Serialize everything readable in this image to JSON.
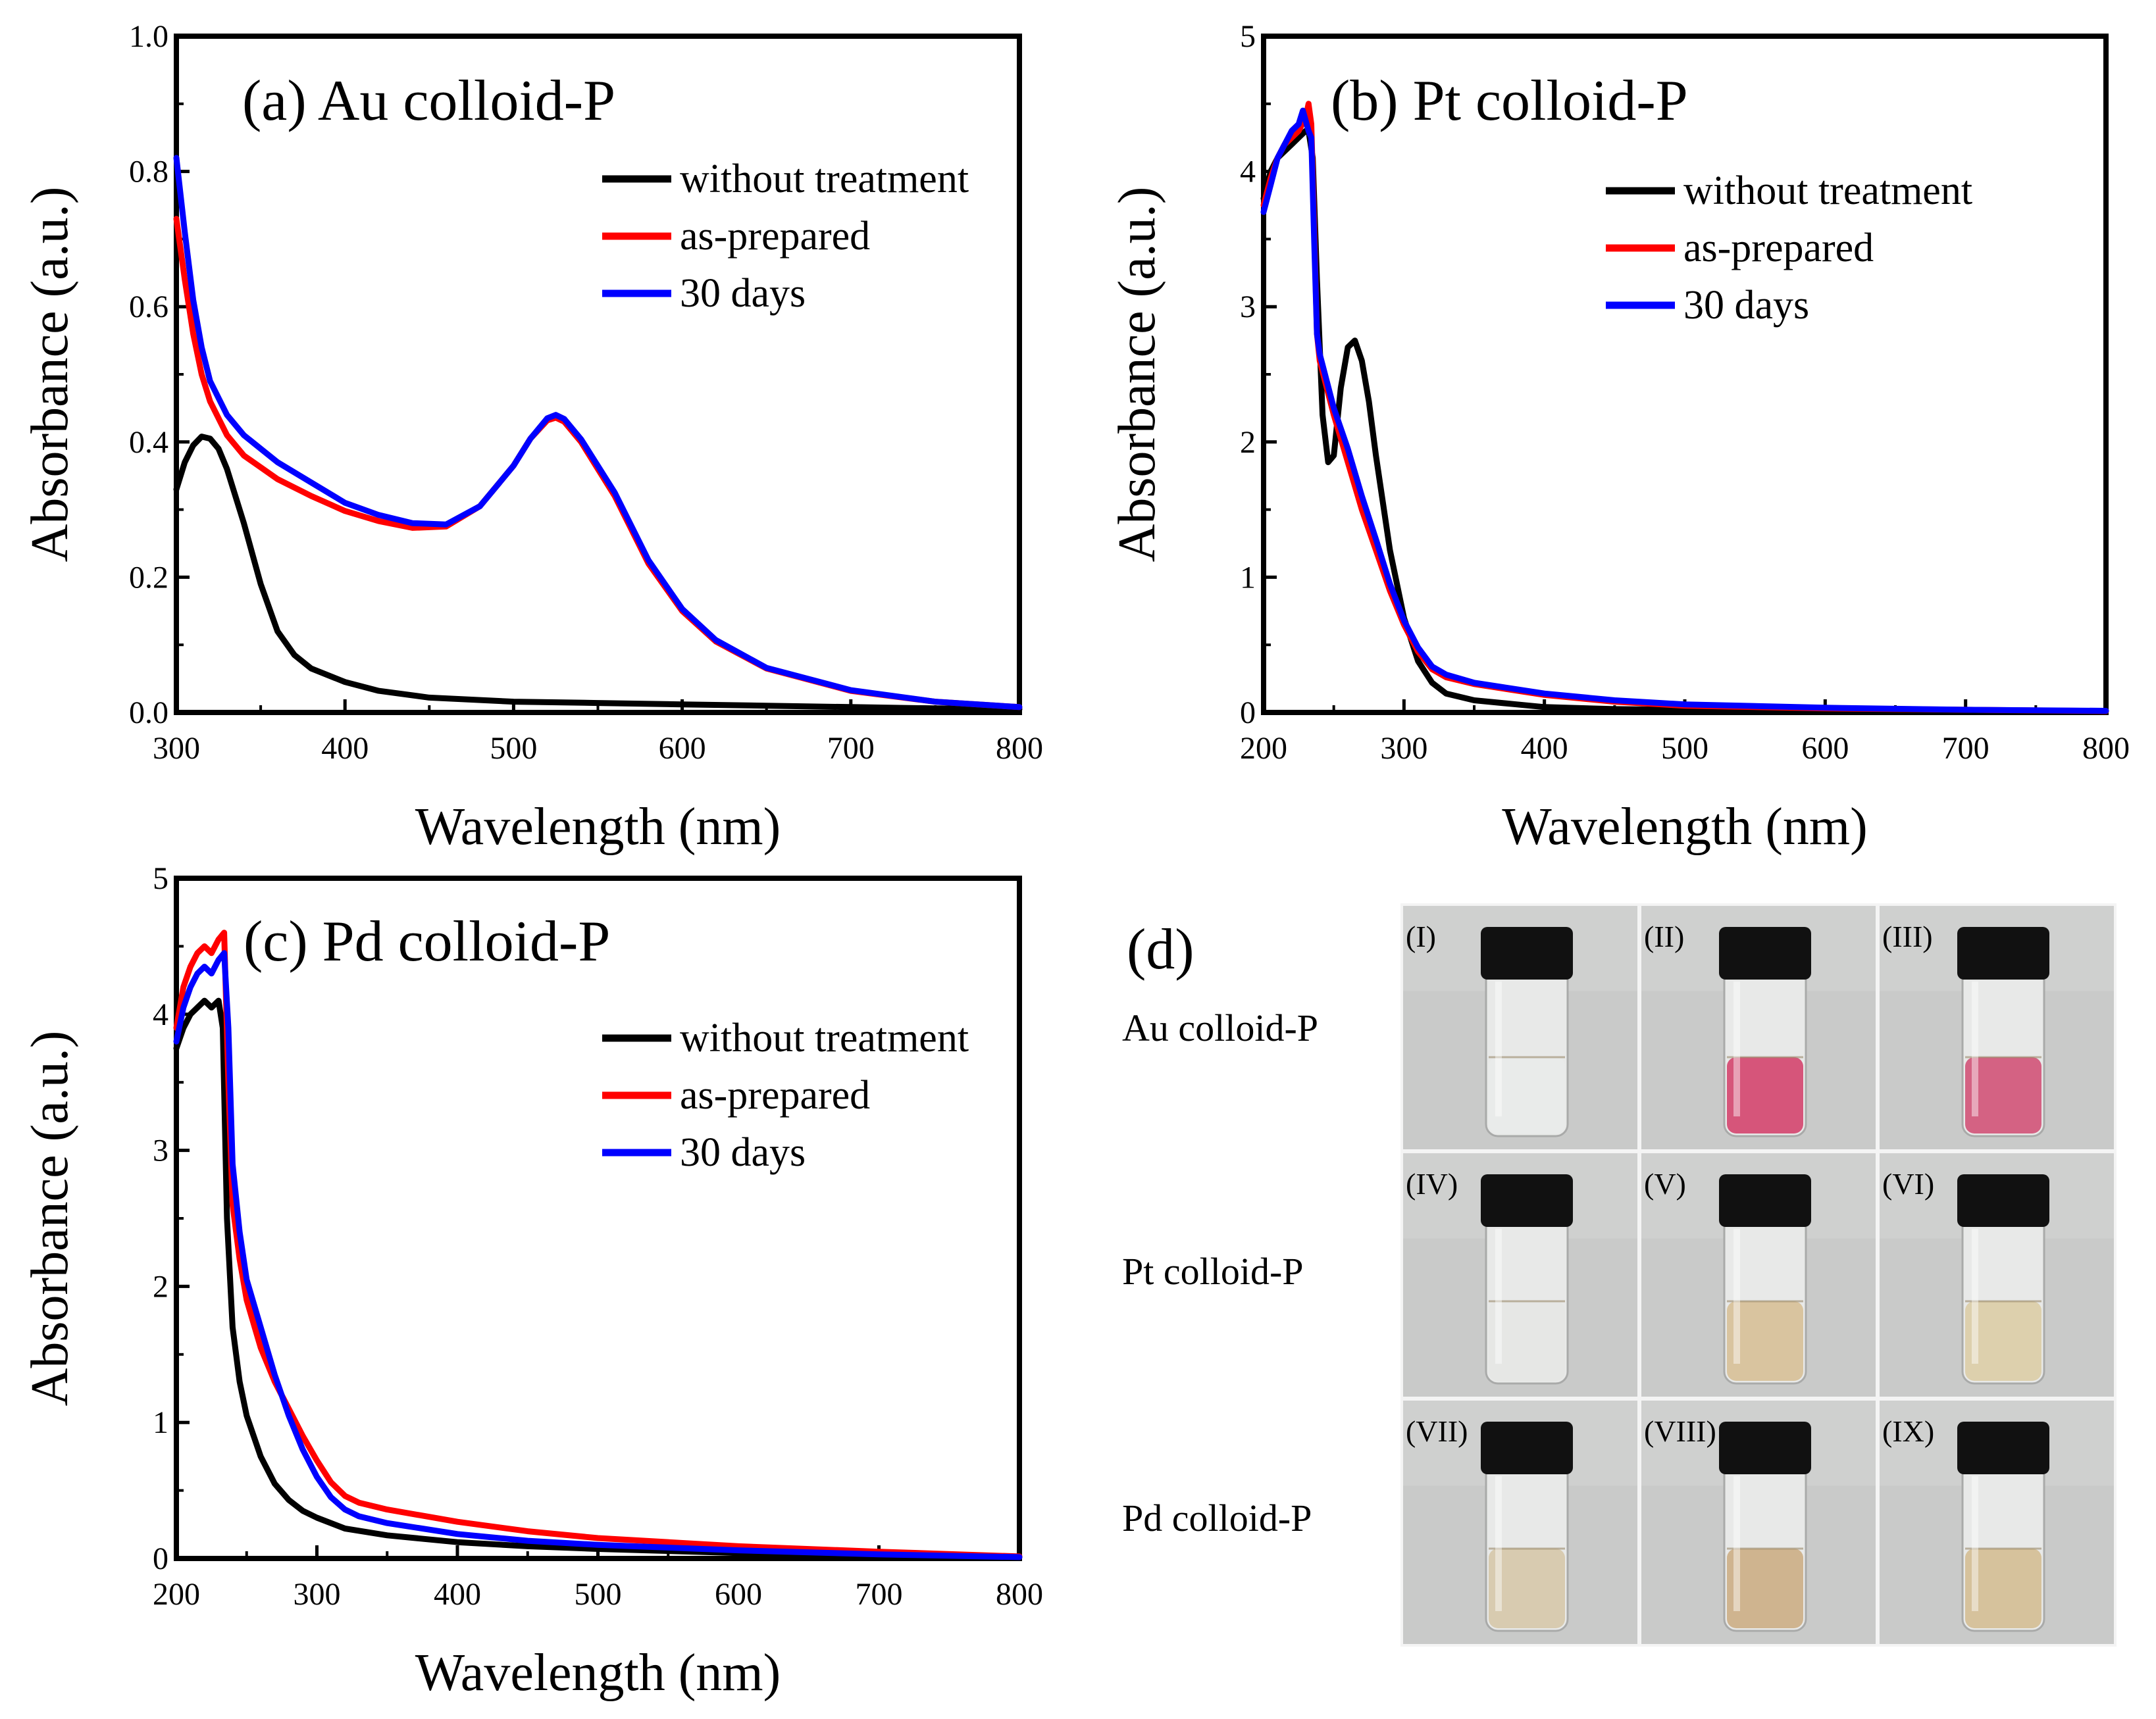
{
  "figure": {
    "panel_d_label": "(d)",
    "row_labels": [
      "Au colloid-P",
      "Pt colloid-P",
      "Pd colloid-P"
    ],
    "vial_labels": [
      "(I)",
      "(II)",
      "(III)",
      "(IV)",
      "(V)",
      "(VI)",
      "(VII)",
      "(VIII)",
      "(IX)"
    ],
    "vial_liquid_colors": [
      "#e9ebea",
      "#d6557a",
      "#d46283",
      "#e6e7e5",
      "#d9c49f",
      "#ddd0ad",
      "#d8cbb0",
      "#cfb48f",
      "#d6c29c"
    ],
    "vial_background": "#c9cac9",
    "cap_color": "#111111"
  },
  "chart_data": [
    {
      "type": "line",
      "title": "(a) Au colloid-P",
      "xlabel": "Wavelength (nm)",
      "ylabel": "Absorbance (a.u.)",
      "xlim": [
        300,
        800
      ],
      "ylim": [
        0,
        1.0
      ],
      "xticks": [
        "300",
        "400",
        "500",
        "600",
        "700",
        "800"
      ],
      "yticks": [
        "0.0",
        "0.2",
        "0.4",
        "0.6",
        "0.8",
        "1.0"
      ],
      "legend_position": "top-right",
      "series": [
        {
          "name": "without treatment",
          "color": "#000000",
          "points": [
            [
              300,
              0.33
            ],
            [
              305,
              0.37
            ],
            [
              310,
              0.395
            ],
            [
              315,
              0.408
            ],
            [
              320,
              0.405
            ],
            [
              325,
              0.39
            ],
            [
              330,
              0.36
            ],
            [
              340,
              0.28
            ],
            [
              350,
              0.19
            ],
            [
              360,
              0.12
            ],
            [
              370,
              0.085
            ],
            [
              380,
              0.065
            ],
            [
              400,
              0.045
            ],
            [
              420,
              0.032
            ],
            [
              450,
              0.022
            ],
            [
              500,
              0.016
            ],
            [
              550,
              0.014
            ],
            [
              600,
              0.012
            ],
            [
              650,
              0.01
            ],
            [
              700,
              0.008
            ],
            [
              750,
              0.006
            ],
            [
              800,
              0.005
            ]
          ]
        },
        {
          "name": "as-prepared",
          "color": "#ff0000",
          "points": [
            [
              300,
              0.73
            ],
            [
              305,
              0.64
            ],
            [
              310,
              0.56
            ],
            [
              315,
              0.5
            ],
            [
              320,
              0.46
            ],
            [
              330,
              0.41
            ],
            [
              340,
              0.38
            ],
            [
              360,
              0.345
            ],
            [
              380,
              0.32
            ],
            [
              400,
              0.298
            ],
            [
              420,
              0.283
            ],
            [
              440,
              0.273
            ],
            [
              460,
              0.275
            ],
            [
              480,
              0.305
            ],
            [
              500,
              0.365
            ],
            [
              510,
              0.405
            ],
            [
              520,
              0.432
            ],
            [
              525,
              0.436
            ],
            [
              530,
              0.43
            ],
            [
              540,
              0.4
            ],
            [
              560,
              0.32
            ],
            [
              580,
              0.22
            ],
            [
              600,
              0.15
            ],
            [
              620,
              0.105
            ],
            [
              650,
              0.065
            ],
            [
              700,
              0.032
            ],
            [
              750,
              0.016
            ],
            [
              800,
              0.008
            ]
          ]
        },
        {
          "name": "30 days",
          "color": "#0000ff",
          "points": [
            [
              300,
              0.82
            ],
            [
              305,
              0.71
            ],
            [
              310,
              0.61
            ],
            [
              315,
              0.54
            ],
            [
              320,
              0.49
            ],
            [
              330,
              0.44
            ],
            [
              340,
              0.41
            ],
            [
              360,
              0.37
            ],
            [
              380,
              0.34
            ],
            [
              400,
              0.31
            ],
            [
              420,
              0.292
            ],
            [
              440,
              0.28
            ],
            [
              460,
              0.278
            ],
            [
              480,
              0.305
            ],
            [
              500,
              0.365
            ],
            [
              510,
              0.405
            ],
            [
              520,
              0.435
            ],
            [
              525,
              0.44
            ],
            [
              530,
              0.434
            ],
            [
              540,
              0.404
            ],
            [
              560,
              0.325
            ],
            [
              580,
              0.225
            ],
            [
              600,
              0.153
            ],
            [
              620,
              0.107
            ],
            [
              650,
              0.066
            ],
            [
              700,
              0.033
            ],
            [
              750,
              0.016
            ],
            [
              800,
              0.008
            ]
          ]
        }
      ]
    },
    {
      "type": "line",
      "title": "(b) Pt colloid-P",
      "xlabel": "Wavelength (nm)",
      "ylabel": "Absorbance (a.u.)",
      "xlim": [
        200,
        800
      ],
      "ylim": [
        0,
        5
      ],
      "xticks": [
        "200",
        "300",
        "400",
        "500",
        "600",
        "700",
        "800"
      ],
      "yticks": [
        "0",
        "1",
        "2",
        "3",
        "4",
        "5"
      ],
      "legend_position": "top-right",
      "series": [
        {
          "name": "without treatment",
          "color": "#000000",
          "points": [
            [
              200,
              3.8
            ],
            [
              205,
              4.0
            ],
            [
              210,
              4.1
            ],
            [
              215,
              4.15
            ],
            [
              220,
              4.2
            ],
            [
              225,
              4.25
            ],
            [
              230,
              4.3
            ],
            [
              232,
              4.3
            ],
            [
              235,
              4.1
            ],
            [
              238,
              3.2
            ],
            [
              242,
              2.2
            ],
            [
              246,
              1.85
            ],
            [
              250,
              1.9
            ],
            [
              255,
              2.4
            ],
            [
              260,
              2.7
            ],
            [
              265,
              2.75
            ],
            [
              270,
              2.6
            ],
            [
              275,
              2.3
            ],
            [
              280,
              1.9
            ],
            [
              290,
              1.2
            ],
            [
              300,
              0.7
            ],
            [
              310,
              0.38
            ],
            [
              320,
              0.22
            ],
            [
              330,
              0.14
            ],
            [
              350,
              0.09
            ],
            [
              380,
              0.06
            ],
            [
              400,
              0.04
            ],
            [
              450,
              0.025
            ],
            [
              500,
              0.02
            ],
            [
              600,
              0.015
            ],
            [
              700,
              0.01
            ],
            [
              800,
              0.01
            ]
          ]
        },
        {
          "name": "as-prepared",
          "color": "#ff0000",
          "points": [
            [
              200,
              3.75
            ],
            [
              205,
              3.95
            ],
            [
              210,
              4.1
            ],
            [
              215,
              4.2
            ],
            [
              220,
              4.25
            ],
            [
              225,
              4.3
            ],
            [
              230,
              4.4
            ],
            [
              232,
              4.5
            ],
            [
              234,
              4.35
            ],
            [
              236,
              3.6
            ],
            [
              238,
              2.8
            ],
            [
              240,
              2.6
            ],
            [
              250,
              2.2
            ],
            [
              260,
              1.85
            ],
            [
              270,
              1.5
            ],
            [
              280,
              1.2
            ],
            [
              290,
              0.9
            ],
            [
              300,
              0.65
            ],
            [
              310,
              0.45
            ],
            [
              320,
              0.32
            ],
            [
              330,
              0.26
            ],
            [
              350,
              0.21
            ],
            [
              400,
              0.13
            ],
            [
              450,
              0.08
            ],
            [
              500,
              0.05
            ],
            [
              600,
              0.03
            ],
            [
              700,
              0.02
            ],
            [
              800,
              0.01
            ]
          ]
        },
        {
          "name": "30 days",
          "color": "#0000ff",
          "points": [
            [
              200,
              3.7
            ],
            [
              205,
              3.9
            ],
            [
              210,
              4.1
            ],
            [
              215,
              4.2
            ],
            [
              220,
              4.3
            ],
            [
              225,
              4.35
            ],
            [
              228,
              4.45
            ],
            [
              232,
              4.3
            ],
            [
              234,
              4.25
            ],
            [
              236,
              3.5
            ],
            [
              238,
              2.8
            ],
            [
              240,
              2.65
            ],
            [
              250,
              2.25
            ],
            [
              260,
              1.95
            ],
            [
              270,
              1.6
            ],
            [
              280,
              1.28
            ],
            [
              290,
              0.95
            ],
            [
              300,
              0.68
            ],
            [
              310,
              0.48
            ],
            [
              320,
              0.34
            ],
            [
              330,
              0.28
            ],
            [
              350,
              0.22
            ],
            [
              400,
              0.14
            ],
            [
              450,
              0.09
            ],
            [
              500,
              0.06
            ],
            [
              600,
              0.035
            ],
            [
              700,
              0.02
            ],
            [
              800,
              0.012
            ]
          ]
        }
      ]
    },
    {
      "type": "line",
      "title": "(c) Pd colloid-P",
      "xlabel": "Wavelength (nm)",
      "ylabel": "Absorbance (a.u.)",
      "xlim": [
        200,
        800
      ],
      "ylim": [
        0,
        5
      ],
      "xticks": [
        "200",
        "300",
        "400",
        "500",
        "600",
        "700",
        "800"
      ],
      "yticks": [
        "0",
        "1",
        "2",
        "3",
        "4",
        "5"
      ],
      "legend_position": "top-right",
      "series": [
        {
          "name": "without treatment",
          "color": "#000000",
          "points": [
            [
              200,
              3.75
            ],
            [
              205,
              3.9
            ],
            [
              210,
              4.0
            ],
            [
              215,
              4.05
            ],
            [
              220,
              4.1
            ],
            [
              225,
              4.05
            ],
            [
              230,
              4.1
            ],
            [
              233,
              3.9
            ],
            [
              236,
              2.5
            ],
            [
              240,
              1.7
            ],
            [
              245,
              1.3
            ],
            [
              250,
              1.05
            ],
            [
              260,
              0.75
            ],
            [
              270,
              0.55
            ],
            [
              280,
              0.43
            ],
            [
              290,
              0.35
            ],
            [
              300,
              0.3
            ],
            [
              320,
              0.22
            ],
            [
              350,
              0.17
            ],
            [
              400,
              0.12
            ],
            [
              450,
              0.09
            ],
            [
              500,
              0.07
            ],
            [
              600,
              0.04
            ],
            [
              700,
              0.02
            ],
            [
              800,
              0.01
            ]
          ]
        },
        {
          "name": "as-prepared",
          "color": "#ff0000",
          "points": [
            [
              200,
              3.9
            ],
            [
              205,
              4.2
            ],
            [
              210,
              4.35
            ],
            [
              215,
              4.45
            ],
            [
              220,
              4.5
            ],
            [
              225,
              4.45
            ],
            [
              230,
              4.55
            ],
            [
              234,
              4.6
            ],
            [
              237,
              3.5
            ],
            [
              240,
              2.6
            ],
            [
              245,
              2.2
            ],
            [
              250,
              1.9
            ],
            [
              260,
              1.55
            ],
            [
              270,
              1.3
            ],
            [
              280,
              1.1
            ],
            [
              290,
              0.9
            ],
            [
              300,
              0.72
            ],
            [
              310,
              0.56
            ],
            [
              320,
              0.46
            ],
            [
              330,
              0.41
            ],
            [
              350,
              0.36
            ],
            [
              400,
              0.27
            ],
            [
              450,
              0.2
            ],
            [
              500,
              0.15
            ],
            [
              600,
              0.09
            ],
            [
              700,
              0.05
            ],
            [
              800,
              0.015
            ]
          ]
        },
        {
          "name": "30 days",
          "color": "#0000ff",
          "points": [
            [
              200,
              3.8
            ],
            [
              205,
              4.05
            ],
            [
              210,
              4.2
            ],
            [
              215,
              4.3
            ],
            [
              220,
              4.35
            ],
            [
              225,
              4.3
            ],
            [
              230,
              4.4
            ],
            [
              234,
              4.45
            ],
            [
              237,
              3.9
            ],
            [
              240,
              2.9
            ],
            [
              245,
              2.4
            ],
            [
              250,
              2.05
            ],
            [
              260,
              1.7
            ],
            [
              270,
              1.35
            ],
            [
              280,
              1.05
            ],
            [
              290,
              0.8
            ],
            [
              300,
              0.6
            ],
            [
              310,
              0.45
            ],
            [
              320,
              0.36
            ],
            [
              330,
              0.31
            ],
            [
              350,
              0.26
            ],
            [
              400,
              0.18
            ],
            [
              450,
              0.13
            ],
            [
              500,
              0.1
            ],
            [
              600,
              0.06
            ],
            [
              700,
              0.03
            ],
            [
              800,
              0.01
            ]
          ]
        }
      ]
    }
  ]
}
